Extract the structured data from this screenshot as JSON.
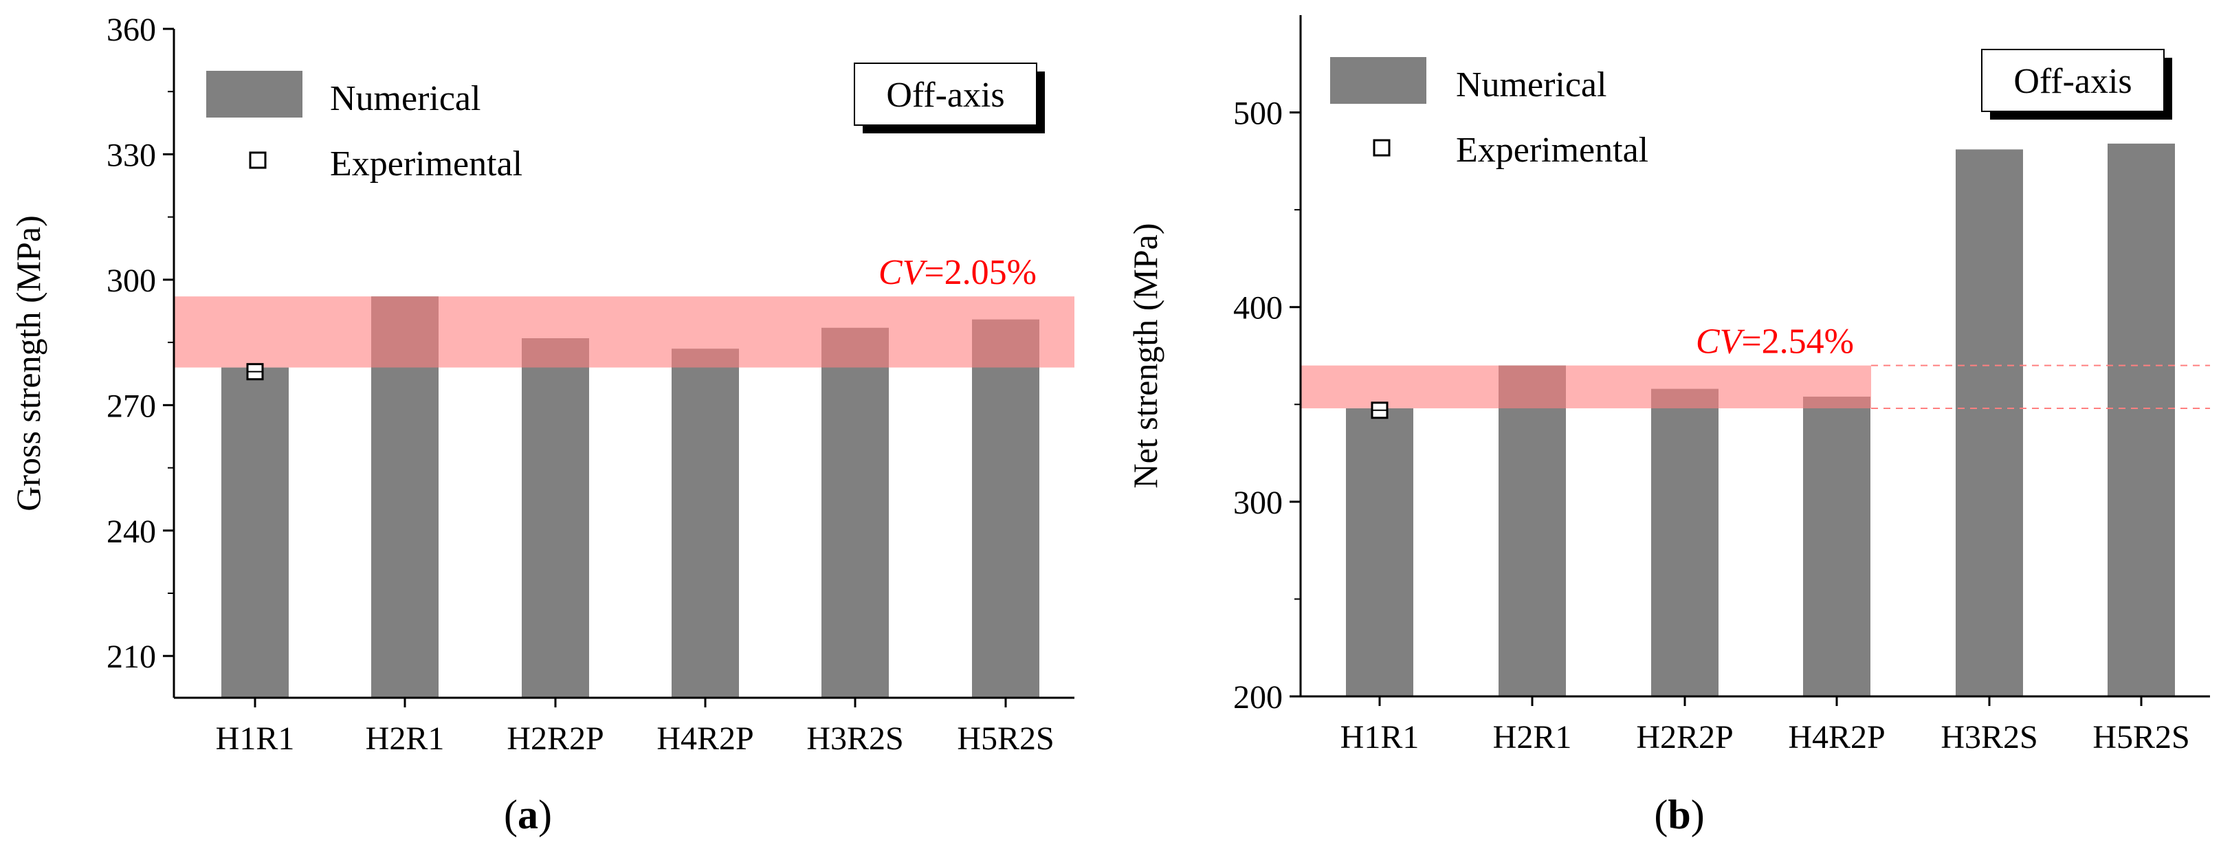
{
  "figure": {
    "background": "#ffffff",
    "bar_color": "#808080",
    "band_color": "#ff8080",
    "band_text_color": "#ff0000"
  },
  "chart_data": [
    {
      "type": "bar",
      "panel_label": "a",
      "categories": [
        "H1R1",
        "H2R1",
        "H2R2P",
        "H4R2P",
        "H3R2S",
        "H5R2S"
      ],
      "series": [
        {
          "name": "Numerical",
          "values": [
            279,
            296,
            286,
            283.5,
            288.5,
            290.5
          ]
        },
        {
          "name": "Experimental",
          "type": "scatter",
          "values": [
            278,
            null,
            null,
            null,
            null,
            null
          ]
        }
      ],
      "ylabel": "Gross strength (MPa)",
      "xlabel": "",
      "ylim": [
        200,
        360
      ],
      "yticks": [
        210,
        240,
        270,
        300,
        330,
        360
      ],
      "band": {
        "from": 279,
        "to": 296,
        "label_prefix": "CV",
        "label_value": "=2.05%",
        "extends_across": true
      },
      "annotation_box": "Off-axis",
      "legend_position": "top-left"
    },
    {
      "type": "bar",
      "panel_label": "b",
      "categories": [
        "H1R1",
        "H2R1",
        "H2R2P",
        "H4R2P",
        "H3R2S",
        "H5R2S"
      ],
      "series": [
        {
          "name": "Numerical",
          "values": [
            348,
            370,
            358,
            354,
            481,
            484
          ]
        },
        {
          "name": "Experimental",
          "type": "scatter",
          "values": [
            347,
            null,
            null,
            null,
            null,
            null
          ]
        }
      ],
      "ylabel": "Net strength (MPa)",
      "xlabel": "",
      "ylim": [
        200,
        550
      ],
      "yticks": [
        200,
        300,
        400,
        500
      ],
      "band": {
        "from": 348,
        "to": 370,
        "label_prefix": "CV",
        "label_value": "=2.54%",
        "extends_across": false,
        "solid_through": "H4R2P"
      },
      "annotation_box": "Off-axis",
      "legend_position": "top-left"
    }
  ]
}
